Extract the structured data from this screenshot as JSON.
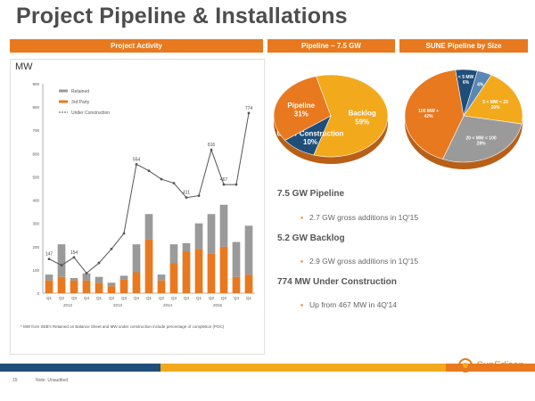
{
  "title": "Project Pipeline & Installations",
  "headers": {
    "activity": "Project Activity",
    "pipeline": "Pipeline ~ 7.5 GW",
    "size": "SUNE Pipeline by Size"
  },
  "mw_label": "MW",
  "bullets": {
    "pipeline_head": "7.5 GW Pipeline",
    "pipeline_item": "2.7 GW gross additions in 1Q'15",
    "backlog_head": "5.2 GW Backlog",
    "backlog_item": "2.9 GW gross additions in 1Q'15",
    "uc_head": "774 MW Under Construction",
    "uc_item": "Up from 467 MW in 4Q'14"
  },
  "footnote": "* MW from SEB's Retained on Balance Sheet and MW under construction include percentage of completion (POC)",
  "page_number": "15",
  "source": "Note: Unaudited",
  "logo": "SunEdison",
  "chart_data": [
    {
      "type": "bar",
      "title": "",
      "ylabel": "MW",
      "ylim": [
        0,
        900
      ],
      "yticks": [
        "0",
        "100",
        "200",
        "300",
        "400",
        "500",
        "600",
        "700",
        "800",
        "900"
      ],
      "categories": [
        "Q1",
        "Q2",
        "Q3",
        "Q4",
        "Q1",
        "Q2",
        "Q3",
        "Q4",
        "Q1",
        "Q2",
        "Q3",
        "Q4",
        "Q1",
        "Q2",
        "Q3",
        "Q4",
        "Q1"
      ],
      "years": [
        "2012",
        "2013",
        "2014",
        "2015"
      ],
      "series": [
        {
          "name": "Retained",
          "color": "#9a9a9a",
          "values": [
            25,
            140,
            10,
            30,
            25,
            15,
            15,
            120,
            110,
            25,
            80,
            35,
            110,
            170,
            180,
            150,
            210
          ]
        },
        {
          "name": "3rd Party",
          "color": "#e8791f",
          "values": [
            55,
            70,
            55,
            55,
            45,
            30,
            60,
            90,
            230,
            55,
            130,
            180,
            190,
            170,
            200,
            70,
            80
          ]
        },
        {
          "name": "Under Construction",
          "color": "#888888",
          "values": [
            147,
            120,
            154,
            86,
            130,
            190,
            257,
            554,
            526,
            490,
            473,
            411,
            419,
            616,
            467,
            467,
            774
          ]
        }
      ],
      "data_labels": [
        "147",
        "",
        "154",
        "",
        "",
        "",
        "",
        "554",
        "",
        "",
        "",
        "411",
        "",
        "616",
        "467",
        "",
        "774"
      ],
      "legend_position": "top-left"
    },
    {
      "type": "pie",
      "title": "Pipeline ~ 7.5 GW",
      "slices": [
        {
          "label": "Backlog",
          "value": 59,
          "text": "59%",
          "color": "#f3a91c"
        },
        {
          "label": "Under Construction",
          "value": 10,
          "text": "10%",
          "color": "#1f4e79"
        },
        {
          "label": "Pipeline",
          "value": 31,
          "text": "31%",
          "color": "#e8791f"
        }
      ]
    },
    {
      "type": "pie",
      "title": "SUNE Pipeline by Size",
      "slices": [
        {
          "label": "5 < MW < 20",
          "value": 20,
          "text": "20%",
          "color": "#f3a91c"
        },
        {
          "label": "20 < MW < 100",
          "value": 28,
          "text": "28%",
          "color": "#9a9a9a"
        },
        {
          "label": "100 MW +",
          "value": 42,
          "text": "42%",
          "color": "#e8791f"
        },
        {
          "label": "< 5 MW",
          "value": 6,
          "text": "6%",
          "color": "#1f4e79"
        },
        {
          "label": "",
          "value": 4,
          "text": "4%",
          "color": "#5b87b5"
        }
      ]
    }
  ],
  "colors": {
    "accent": "#e8791f",
    "gold": "#f3a91c",
    "navy": "#1f4e79",
    "grey": "#9a9a9a"
  }
}
